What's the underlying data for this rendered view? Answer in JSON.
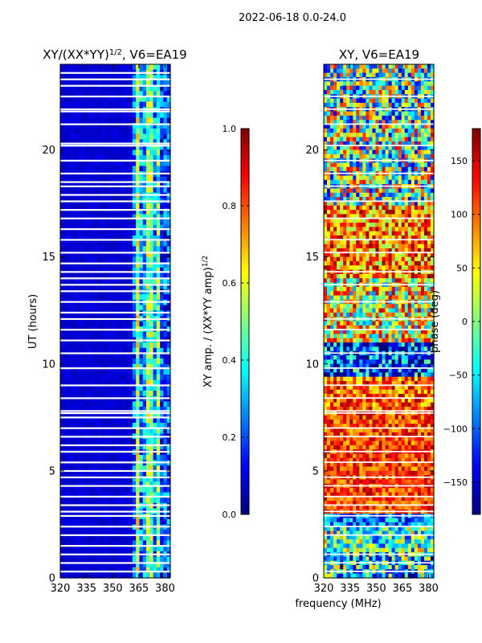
{
  "suptitle": "2022-06-18 0.0-24.0",
  "xlabel_shared": "frequency (MHz)",
  "colors": {
    "jet": [
      "#00007f",
      "#0000ff",
      "#007fff",
      "#00ffff",
      "#7fff7f",
      "#ffff00",
      "#ff7f00",
      "#ff0000",
      "#7f0000"
    ],
    "gap": "#ffffff",
    "axis": "#000000"
  },
  "chart_data": [
    {
      "type": "heatmap",
      "title_main": "XY/(XX*YY)",
      "title_sup": "1/2",
      "title_suffix": ", V6=EA19",
      "ylabel": "UT (hours)",
      "xlim": [
        320,
        383
      ],
      "ylim": [
        0,
        24
      ],
      "xticks": [
        "320",
        "335",
        "350",
        "365",
        "380"
      ],
      "xtick_values": [
        320,
        335,
        350,
        365,
        380
      ],
      "yticks": [
        "0",
        "5",
        "10",
        "15",
        "20"
      ],
      "ytick_values": [
        0,
        5,
        10,
        15,
        20
      ],
      "colorbar": {
        "label_main": "XY amp. / (XX*YY amp)",
        "label_sup": "1/2",
        "range": [
          0.0,
          1.0
        ],
        "ticks": [
          "0.0",
          "0.2",
          "0.4",
          "0.6",
          "0.8",
          "1.0"
        ],
        "tick_values": [
          0.0,
          0.2,
          0.4,
          0.6,
          0.8,
          1.0
        ]
      },
      "bands": [
        {
          "from": 320,
          "to": 361,
          "level": 0.08
        },
        {
          "from": 361,
          "to": 364,
          "level": 0.22
        },
        {
          "from": 364,
          "to": 366,
          "level": 0.55
        },
        {
          "from": 366,
          "to": 369,
          "level": 0.28
        },
        {
          "from": 369,
          "to": 373,
          "level": 0.5
        },
        {
          "from": 373,
          "to": 376,
          "level": 0.3
        },
        {
          "from": 376,
          "to": 378,
          "level": 0.45
        },
        {
          "from": 378,
          "to": 383,
          "level": 0.2
        }
      ],
      "gaps_ut": [
        0.3,
        0.7,
        1.1,
        1.5,
        2.0,
        2.4,
        2.9,
        3.1,
        3.4,
        3.8,
        4.3,
        4.7,
        5.0,
        5.4,
        5.9,
        6.2,
        6.6,
        7.0,
        7.5,
        7.7,
        7.8,
        8.4,
        9.0,
        9.8,
        10.5,
        11.1,
        11.6,
        12.1,
        12.4,
        12.9,
        13.4,
        13.7,
        14.0,
        14.3,
        14.7,
        15.2,
        15.8,
        16.3,
        16.8,
        17.2,
        17.6,
        17.9,
        18.3,
        18.5,
        18.9,
        19.5,
        20.2,
        20.3,
        21.2,
        21.8,
        21.9,
        22.5,
        23.0,
        23.3,
        23.6
      ]
    },
    {
      "type": "heatmap",
      "title_main": "XY, V6=EA19",
      "xlim": [
        320,
        383
      ],
      "ylim": [
        0,
        24
      ],
      "xticks": [
        "320",
        "335",
        "350",
        "365",
        "380"
      ],
      "xtick_values": [
        320,
        335,
        350,
        365,
        380
      ],
      "yticks": [
        "0",
        "5",
        "10",
        "15",
        "20"
      ],
      "ytick_values": [
        0,
        5,
        10,
        15,
        20
      ],
      "colorbar": {
        "label_main": "phase (deg)",
        "range": [
          -180,
          180
        ],
        "ticks": [
          "−150",
          "−100",
          "−50",
          "0",
          "50",
          "100",
          "150"
        ],
        "tick_values": [
          -150,
          -100,
          -50,
          0,
          50,
          100,
          150
        ]
      },
      "ut_bands": [
        {
          "from": 0.0,
          "to": 1.2,
          "level": 0.35,
          "var": 0.35
        },
        {
          "from": 1.2,
          "to": 2.4,
          "level": 0.45,
          "var": 0.3
        },
        {
          "from": 2.4,
          "to": 3.0,
          "level": 0.25,
          "var": 0.2
        },
        {
          "from": 3.0,
          "to": 7.6,
          "level": 0.82,
          "var": 0.15
        },
        {
          "from": 7.6,
          "to": 9.4,
          "level": 0.78,
          "var": 0.2
        },
        {
          "from": 9.4,
          "to": 11.0,
          "level": 0.2,
          "var": 0.3
        },
        {
          "from": 11.0,
          "to": 14.0,
          "level": 0.6,
          "var": 0.35
        },
        {
          "from": 14.0,
          "to": 17.5,
          "level": 0.75,
          "var": 0.25
        },
        {
          "from": 17.5,
          "to": 21.0,
          "level": 0.5,
          "var": 0.4
        },
        {
          "from": 21.0,
          "to": 24.0,
          "level": 0.45,
          "var": 0.4
        }
      ],
      "gaps_ut": [
        0.3,
        0.7,
        1.1,
        2.0,
        2.4,
        2.9,
        3.1,
        3.4,
        3.8,
        4.3,
        4.7,
        5.4,
        5.9,
        6.6,
        7.0,
        7.7,
        7.8,
        8.4,
        9.0,
        9.8,
        10.5,
        11.6,
        12.1,
        12.9,
        13.7,
        14.3,
        15.2,
        15.8,
        16.8,
        17.6,
        18.3,
        18.9,
        19.5,
        20.2,
        21.2,
        21.9,
        22.5,
        23.3
      ]
    }
  ]
}
